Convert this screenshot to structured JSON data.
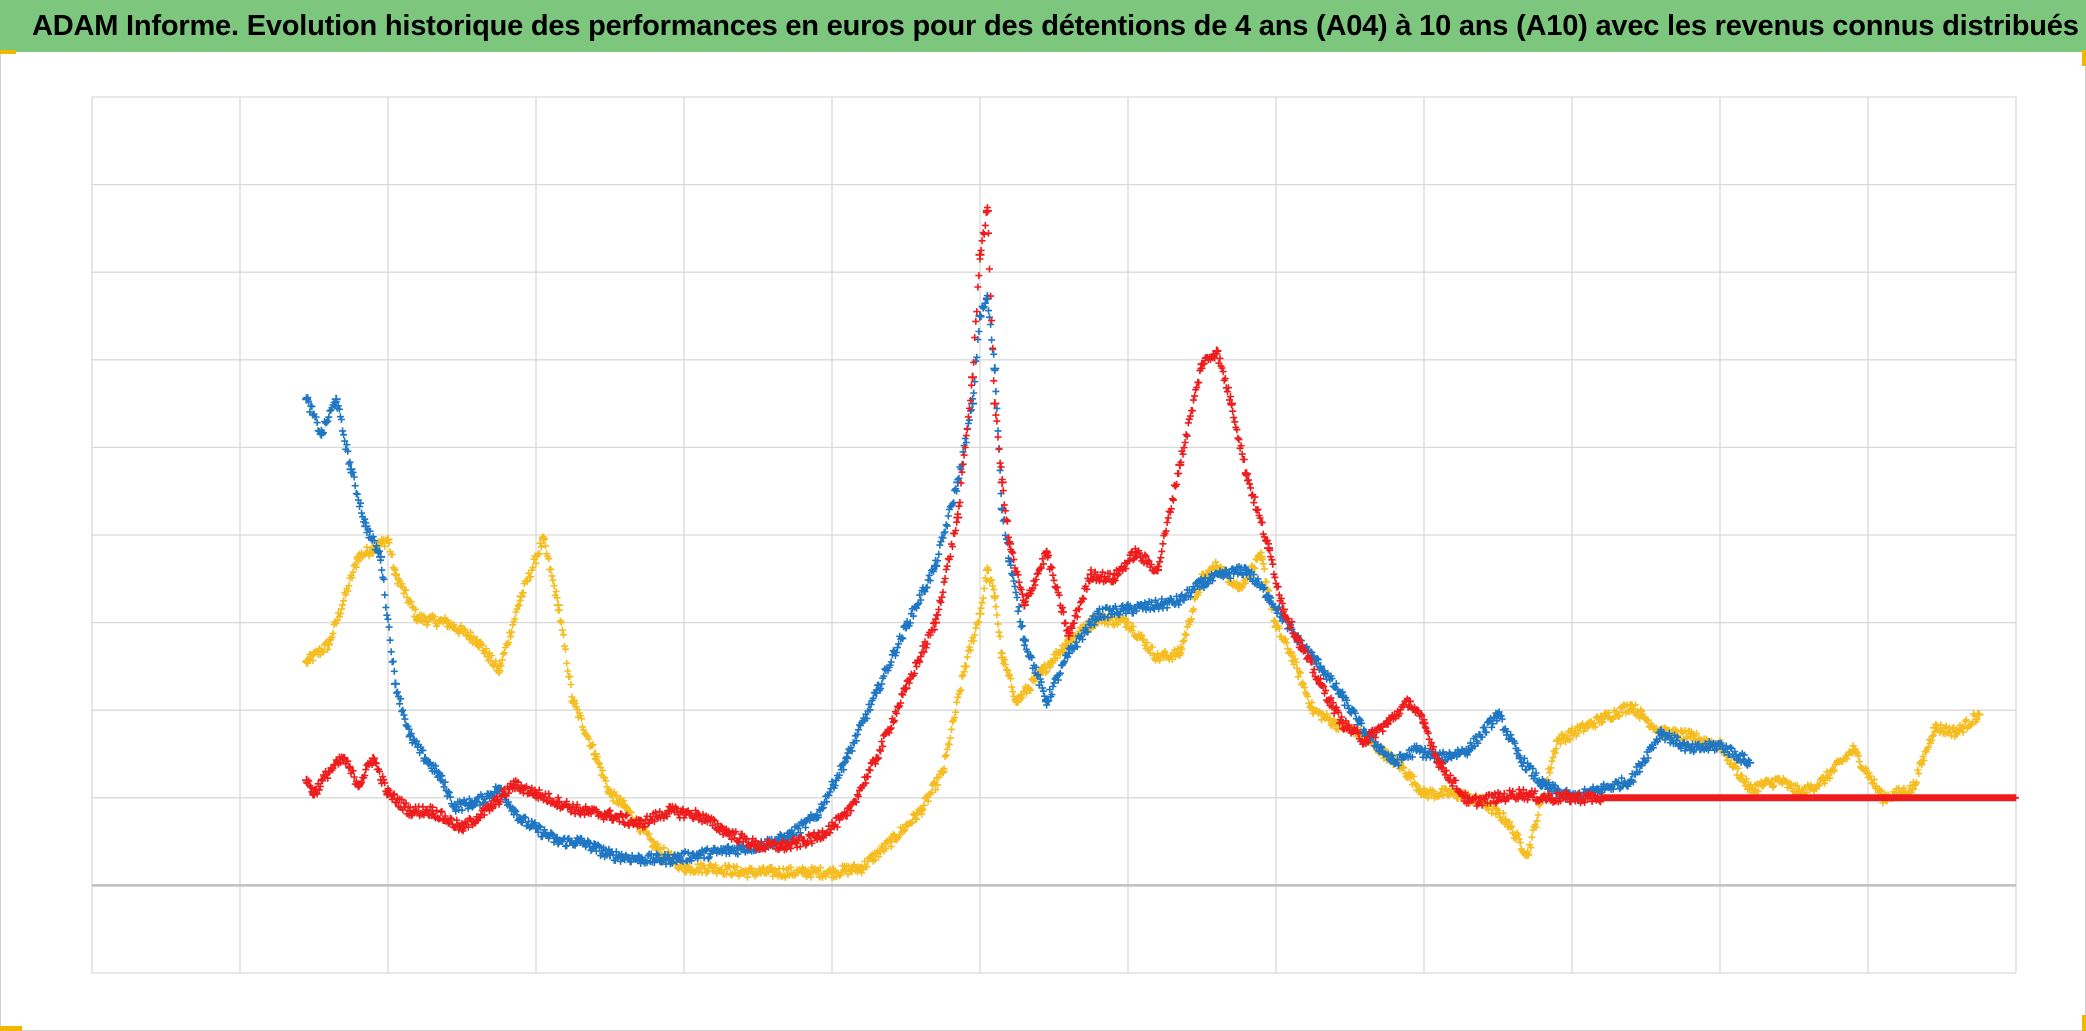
{
  "title": "ADAM Informe. Evolution historique des performances en euros pour des détentions de 4 ans (A04) à 10 ans (A10) avec les revenus connus distribués",
  "colors": {
    "title_bar": "#7dc67e",
    "grid": "#d9d9d9",
    "axis": "#bfbfbf",
    "corner_markers": "#f2b800"
  },
  "chart_data": {
    "type": "scatter",
    "marker": "cross",
    "title": "ADAM Informe. Evolution historique des performances en euros pour des détentions de 4 ans (A04) à 10 ans (A10) avec les revenus connus distribués",
    "xlabel": "",
    "ylabel": "",
    "xlim": [
      0,
      13
    ],
    "ylim": [
      -1,
      9
    ],
    "x_ticks_labels_visible": false,
    "y_ticks_labels_visible": false,
    "grid": true,
    "x_gridlines": 13,
    "y_gridlines": 10,
    "zero_line": 0,
    "legend": "none",
    "series": [
      {
        "color": "#f5bd1f",
        "x": [
          1.45,
          1.6,
          1.8,
          1.9,
          2.0,
          2.05,
          2.2,
          2.4,
          2.6,
          2.75,
          2.9,
          3.05,
          3.15,
          3.25,
          3.4,
          3.5,
          3.6,
          3.8,
          4.0,
          4.2,
          4.4,
          4.6,
          4.8,
          5.0,
          5.2,
          5.4,
          5.6,
          5.75,
          5.9,
          6.0,
          6.05,
          6.1,
          6.15,
          6.25,
          6.4,
          6.6,
          6.8,
          7.0,
          7.2,
          7.35,
          7.5,
          7.6,
          7.75,
          7.9,
          8.0,
          8.1,
          8.25,
          8.4,
          8.55,
          8.7,
          8.85,
          9.0,
          9.2,
          9.4,
          9.55,
          9.7,
          9.9,
          10.2,
          10.4,
          10.6,
          10.8,
          11.0,
          11.2,
          11.4,
          11.55,
          11.7,
          11.9,
          12.1,
          12.3,
          12.45,
          12.6,
          12.75
        ],
        "y": [
          2.55,
          2.75,
          3.75,
          3.85,
          3.95,
          3.55,
          3.05,
          3.0,
          2.8,
          2.45,
          3.3,
          3.95,
          3.2,
          2.1,
          1.5,
          1.05,
          0.9,
          0.45,
          0.2,
          0.2,
          0.15,
          0.15,
          0.15,
          0.15,
          0.2,
          0.5,
          0.85,
          1.3,
          2.5,
          3.1,
          3.6,
          3.3,
          2.6,
          2.1,
          2.4,
          2.8,
          3.05,
          3.0,
          2.6,
          2.65,
          3.5,
          3.65,
          3.4,
          3.75,
          2.95,
          2.65,
          2.0,
          1.85,
          1.75,
          1.55,
          1.35,
          1.05,
          1.05,
          0.95,
          0.75,
          0.35,
          1.65,
          1.9,
          2.05,
          1.75,
          1.7,
          1.6,
          1.1,
          1.2,
          1.05,
          1.2,
          1.55,
          1.0,
          1.1,
          1.8,
          1.75,
          1.95
        ]
      },
      {
        "color": "#1f77c4",
        "x": [
          1.45,
          1.55,
          1.65,
          1.75,
          1.85,
          1.95,
          2.05,
          2.15,
          2.25,
          2.35,
          2.45,
          2.6,
          2.75,
          2.9,
          3.0,
          3.15,
          3.3,
          3.5,
          3.7,
          3.9,
          4.1,
          4.3,
          4.5,
          4.7,
          4.9,
          5.1,
          5.3,
          5.5,
          5.7,
          5.85,
          5.95,
          6.0,
          6.05,
          6.1,
          6.15,
          6.2,
          6.3,
          6.45,
          6.6,
          6.8,
          7.0,
          7.2,
          7.35,
          7.5,
          7.65,
          7.8,
          7.95,
          8.05,
          8.15,
          8.3,
          8.45,
          8.6,
          8.8,
          8.95,
          9.1,
          9.3,
          9.5,
          9.65,
          9.8,
          10.0,
          10.2,
          10.4,
          10.6,
          10.8,
          11.0,
          11.2
        ],
        "y": [
          5.55,
          5.15,
          5.55,
          4.75,
          4.1,
          3.75,
          2.3,
          1.7,
          1.45,
          1.25,
          0.9,
          0.95,
          1.1,
          0.75,
          0.65,
          0.5,
          0.5,
          0.35,
          0.3,
          0.3,
          0.35,
          0.4,
          0.45,
          0.55,
          0.8,
          1.45,
          2.2,
          2.95,
          3.65,
          4.6,
          5.5,
          6.5,
          6.7,
          5.9,
          4.3,
          3.7,
          2.8,
          2.1,
          2.65,
          3.1,
          3.15,
          3.2,
          3.25,
          3.45,
          3.55,
          3.6,
          3.3,
          3.05,
          2.8,
          2.5,
          2.15,
          1.75,
          1.4,
          1.55,
          1.45,
          1.55,
          1.95,
          1.45,
          1.15,
          1.0,
          1.1,
          1.2,
          1.75,
          1.55,
          1.6,
          1.4
        ]
      },
      {
        "color": "#ee1c1c",
        "x": [
          1.45,
          1.5,
          1.6,
          1.7,
          1.8,
          1.9,
          2.0,
          2.15,
          2.3,
          2.5,
          2.7,
          2.85,
          3.0,
          3.15,
          3.3,
          3.5,
          3.7,
          3.9,
          4.1,
          4.3,
          4.5,
          4.7,
          4.9,
          5.1,
          5.3,
          5.5,
          5.7,
          5.85,
          5.95,
          6.0,
          6.05,
          6.1,
          6.15,
          6.2,
          6.3,
          6.45,
          6.6,
          6.75,
          6.9,
          7.05,
          7.2,
          7.35,
          7.5,
          7.6,
          7.7,
          7.8,
          7.95,
          8.05,
          8.15,
          8.3,
          8.45,
          8.6,
          8.75,
          8.9,
          9.0,
          9.1,
          9.3,
          9.5,
          9.65,
          9.8,
          10.0,
          10.2
        ],
        "y": [
          1.2,
          1.05,
          1.3,
          1.45,
          1.15,
          1.45,
          1.05,
          0.85,
          0.85,
          0.65,
          0.9,
          1.15,
          1.05,
          0.95,
          0.85,
          0.8,
          0.7,
          0.85,
          0.8,
          0.6,
          0.45,
          0.45,
          0.55,
          0.8,
          1.45,
          2.25,
          3.0,
          4.2,
          5.8,
          7.2,
          7.7,
          5.5,
          4.6,
          3.9,
          3.2,
          3.8,
          2.85,
          3.55,
          3.5,
          3.8,
          3.6,
          4.8,
          5.95,
          6.1,
          5.5,
          4.7,
          3.85,
          3.15,
          2.8,
          2.3,
          1.85,
          1.65,
          1.85,
          2.1,
          1.85,
          1.4,
          0.95,
          1.0,
          1.05,
          1.0,
          1.0,
          1.0
        ]
      }
    ]
  }
}
